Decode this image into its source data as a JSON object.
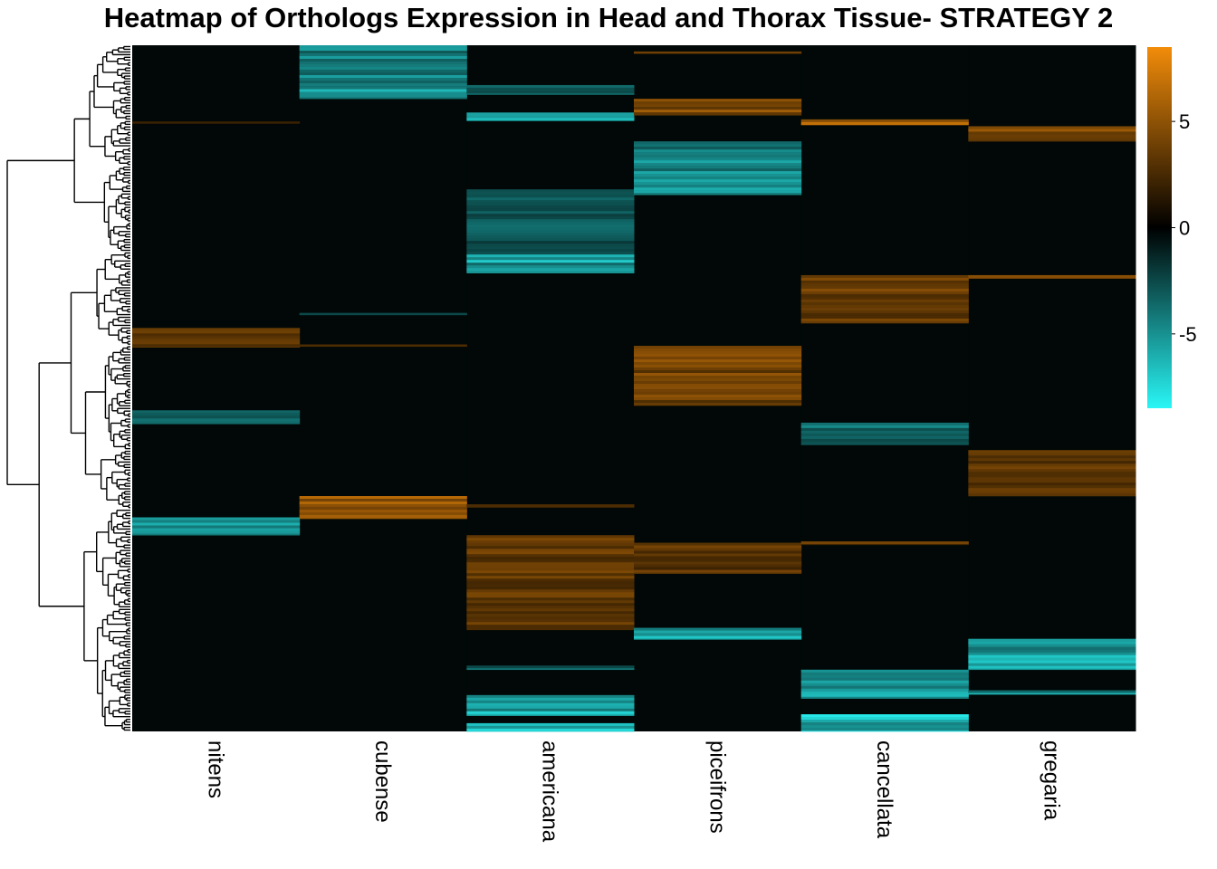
{
  "chart_data": {
    "type": "heatmap",
    "title": "Heatmap of Orthologs Expression in Head and Thorax Tissue- STRATEGY 2",
    "columns": [
      "nitens",
      "cubense",
      "americana",
      "piceifrons",
      "cancellata",
      "gregaria"
    ],
    "row_dendrogram": true,
    "color_scale": {
      "min": -8.5,
      "max": 8.5,
      "low_color": "#29F6F6",
      "mid_color": "#000000",
      "high_color": "#F28C0A",
      "ticks": [
        5,
        0,
        -5
      ],
      "tick_labels": [
        "5",
        "0",
        "-5"
      ]
    },
    "row_count_approx": 500,
    "blocks": [
      {
        "column": "nitens",
        "row_start": 0.412,
        "row_end": 0.44,
        "value": 4.5
      },
      {
        "column": "nitens",
        "row_start": 0.532,
        "row_end": 0.552,
        "value": -4.0
      },
      {
        "column": "nitens",
        "row_start": 0.688,
        "row_end": 0.714,
        "value": -6.5
      },
      {
        "column": "nitens",
        "row_start": 0.111,
        "row_end": 0.114,
        "value": 3.5
      },
      {
        "column": "cubense",
        "row_start": 0.0,
        "row_end": 0.06,
        "value": -5.0
      },
      {
        "column": "cubense",
        "row_start": 0.06,
        "row_end": 0.078,
        "value": -6.5
      },
      {
        "column": "cubense",
        "row_start": 0.657,
        "row_end": 0.69,
        "value": 6.0
      },
      {
        "column": "cubense",
        "row_start": 0.39,
        "row_end": 0.393,
        "value": -4.0
      },
      {
        "column": "cubense",
        "row_start": 0.436,
        "row_end": 0.439,
        "value": 4.0
      },
      {
        "column": "americana",
        "row_start": 0.058,
        "row_end": 0.072,
        "value": -4.5
      },
      {
        "column": "americana",
        "row_start": 0.098,
        "row_end": 0.11,
        "value": -6.0
      },
      {
        "column": "americana",
        "row_start": 0.21,
        "row_end": 0.305,
        "value": -3.5
      },
      {
        "column": "americana",
        "row_start": 0.305,
        "row_end": 0.332,
        "value": -6.5
      },
      {
        "column": "americana",
        "row_start": 0.669,
        "row_end": 0.673,
        "value": 4.5
      },
      {
        "column": "americana",
        "row_start": 0.714,
        "row_end": 0.852,
        "value": 4.2
      },
      {
        "column": "americana",
        "row_start": 0.904,
        "row_end": 0.91,
        "value": -4.5
      },
      {
        "column": "americana",
        "row_start": 0.947,
        "row_end": 0.977,
        "value": -7.5
      },
      {
        "column": "americana",
        "row_start": 0.988,
        "row_end": 1.0,
        "value": -7.0
      },
      {
        "column": "piceifrons",
        "row_start": 0.078,
        "row_end": 0.102,
        "value": 5.5
      },
      {
        "column": "piceifrons",
        "row_start": 0.14,
        "row_end": 0.218,
        "value": -5.5
      },
      {
        "column": "piceifrons",
        "row_start": 0.438,
        "row_end": 0.525,
        "value": 4.8
      },
      {
        "column": "piceifrons",
        "row_start": 0.725,
        "row_end": 0.77,
        "value": 3.8
      },
      {
        "column": "piceifrons",
        "row_start": 0.849,
        "row_end": 0.866,
        "value": -7.5
      },
      {
        "column": "piceifrons",
        "row_start": 0.009,
        "row_end": 0.012,
        "value": 4.0
      },
      {
        "column": "cancellata",
        "row_start": 0.108,
        "row_end": 0.116,
        "value": 6.5
      },
      {
        "column": "cancellata",
        "row_start": 0.335,
        "row_end": 0.405,
        "value": 4.5
      },
      {
        "column": "cancellata",
        "row_start": 0.55,
        "row_end": 0.582,
        "value": -4.5
      },
      {
        "column": "cancellata",
        "row_start": 0.723,
        "row_end": 0.728,
        "value": 4.0
      },
      {
        "column": "cancellata",
        "row_start": 0.91,
        "row_end": 0.952,
        "value": -6.0
      },
      {
        "column": "cancellata",
        "row_start": 0.975,
        "row_end": 1.0,
        "value": -7.5
      },
      {
        "column": "gregaria",
        "row_start": 0.118,
        "row_end": 0.14,
        "value": 5.0
      },
      {
        "column": "gregaria",
        "row_start": 0.335,
        "row_end": 0.34,
        "value": 4.5
      },
      {
        "column": "gregaria",
        "row_start": 0.59,
        "row_end": 0.657,
        "value": 3.8
      },
      {
        "column": "gregaria",
        "row_start": 0.865,
        "row_end": 0.91,
        "value": -6.5
      },
      {
        "column": "gregaria",
        "row_start": 0.94,
        "row_end": 0.946,
        "value": -6.0
      }
    ]
  }
}
